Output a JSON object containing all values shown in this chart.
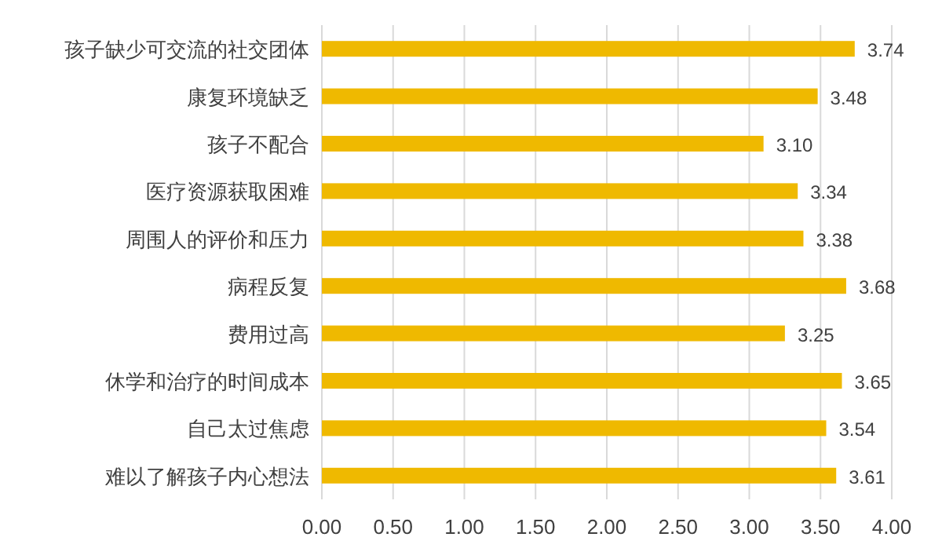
{
  "chart_data": {
    "type": "bar",
    "orientation": "horizontal",
    "categories": [
      "孩子缺少可交流的社交团体",
      "康复环境缺乏",
      "孩子不配合",
      "医疗资源获取困难",
      "周围人的评价和压力",
      "病程反复",
      "费用过高",
      "休学和治疗的时间成本",
      "自己太过焦虑",
      "难以了解孩子内心想法"
    ],
    "values": [
      3.74,
      3.48,
      3.1,
      3.34,
      3.38,
      3.68,
      3.25,
      3.65,
      3.54,
      3.61
    ],
    "value_labels": [
      "3.74",
      "3.48",
      "3.10",
      "3.34",
      "3.38",
      "3.68",
      "3.25",
      "3.65",
      "3.54",
      "3.61"
    ],
    "color": "#efb900",
    "xlim": [
      0,
      4
    ],
    "xticks": [
      {
        "value": 0,
        "label": "0.00"
      },
      {
        "value": 0.5,
        "label": "0.50"
      },
      {
        "value": 1,
        "label": "1.00"
      },
      {
        "value": 1.5,
        "label": "1.50"
      },
      {
        "value": 2,
        "label": "2.00"
      },
      {
        "value": 2.5,
        "label": "2.50"
      },
      {
        "value": 3,
        "label": "3.00"
      },
      {
        "value": 3.5,
        "label": "3.50"
      },
      {
        "value": 4,
        "label": "4.00"
      }
    ],
    "grid": "x"
  }
}
